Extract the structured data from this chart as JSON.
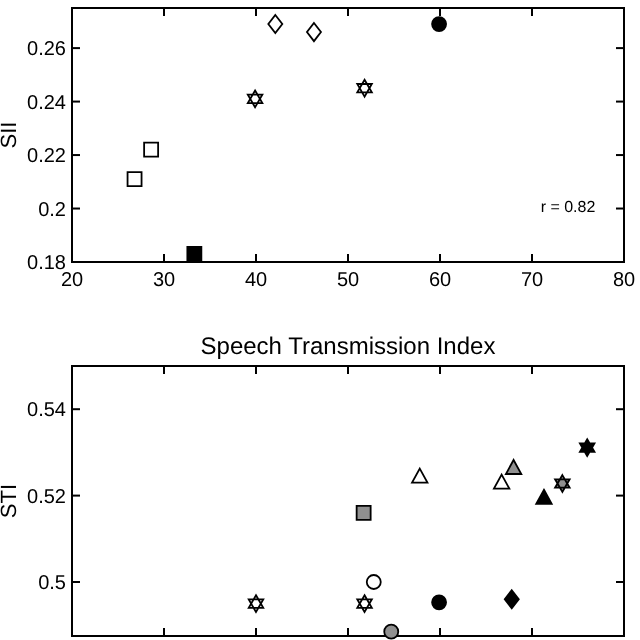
{
  "chart_data": [
    {
      "type": "scatter",
      "ylabel": "SII",
      "xlim": [
        20,
        80
      ],
      "xticks": [
        20,
        30,
        40,
        50,
        60,
        70,
        80
      ],
      "ylim": [
        0.18,
        0.275
      ],
      "yticks": [
        0.18,
        0.2,
        0.22,
        0.24,
        0.26
      ],
      "annotations": [
        "r = 0.82"
      ],
      "series": [
        {
          "marker": "square",
          "color": "#ffffff",
          "x": [
            26.8,
            28.6
          ],
          "values": [
            0.211,
            0.222
          ]
        },
        {
          "marker": "square",
          "color": "#000000",
          "x": [
            33.3
          ],
          "values": [
            0.183
          ]
        },
        {
          "marker": "star",
          "color": "#ffffff",
          "x": [
            39.9,
            51.8
          ],
          "values": [
            0.241,
            0.245
          ]
        },
        {
          "marker": "diamond",
          "color": "#ffffff",
          "x": [
            42.1,
            46.3
          ],
          "values": [
            0.269,
            0.266
          ]
        },
        {
          "marker": "circle",
          "color": "#000000",
          "x": [
            59.9
          ],
          "values": [
            0.269
          ]
        }
      ]
    },
    {
      "type": "scatter",
      "title": "Speech Transmission Index",
      "ylabel": "STI",
      "xlim": [
        20,
        80
      ],
      "xticks": [
        20,
        30,
        40,
        50,
        60,
        70,
        80
      ],
      "ylim": [
        0.4875,
        0.55
      ],
      "yticks": [
        0.5,
        0.52,
        0.54
      ],
      "tick_labels": "y",
      "series": [
        {
          "marker": "star",
          "color": "#ffffff",
          "x": [
            40.0,
            51.8
          ],
          "values": [
            0.495,
            0.495
          ]
        },
        {
          "marker": "circle",
          "color": "#ffffff",
          "x": [
            52.8
          ],
          "values": [
            0.5
          ]
        },
        {
          "marker": "square",
          "color": "#909090",
          "x": [
            51.7
          ],
          "values": [
            0.516
          ]
        },
        {
          "marker": "circle",
          "color": "#909090",
          "x": [
            54.7
          ],
          "values": [
            0.4885
          ]
        },
        {
          "marker": "circle",
          "color": "#000000",
          "x": [
            59.9
          ],
          "values": [
            0.4953
          ]
        },
        {
          "marker": "triangle",
          "color": "#ffffff",
          "x": [
            57.8,
            66.7
          ],
          "values": [
            0.5243,
            0.5229
          ]
        },
        {
          "marker": "triangle",
          "color": "#909090",
          "x": [
            68.0
          ],
          "values": [
            0.5263
          ]
        },
        {
          "marker": "triangle",
          "color": "#000000",
          "x": [
            71.3
          ],
          "values": [
            0.5194
          ]
        },
        {
          "marker": "diamond",
          "color": "#000000",
          "x": [
            67.8
          ],
          "values": [
            0.496
          ]
        },
        {
          "marker": "star",
          "color": "#909090",
          "x": [
            73.3
          ],
          "values": [
            0.5228
          ]
        },
        {
          "marker": "star",
          "color": "#000000",
          "x": [
            76.0
          ],
          "values": [
            0.5311
          ]
        }
      ]
    }
  ]
}
